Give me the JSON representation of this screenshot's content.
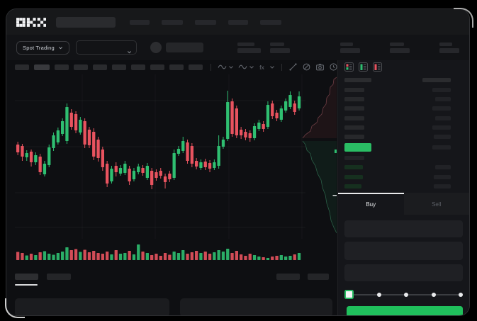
{
  "app": {
    "logo_label": "OKX"
  },
  "topbar": {
    "nav_placeholders": [
      28,
      30,
      30,
      28,
      30
    ]
  },
  "subbar": {
    "market_selector_label": "Spot Trading",
    "stats": [
      [
        24,
        33
      ],
      [
        20,
        28
      ],
      [
        18,
        28
      ],
      [
        20,
        28
      ],
      [
        18,
        28
      ]
    ]
  },
  "chart_toolbar": {
    "blocks": [
      20,
      22,
      20,
      20,
      20,
      20,
      20,
      20,
      20,
      20
    ],
    "tools": [
      "divider",
      "wave",
      "chevron",
      "wave",
      "chevron",
      "fx",
      "chevron",
      "divider",
      "line",
      "eraser",
      "camera",
      "clock",
      "expand"
    ]
  },
  "orderbook": {
    "layout_icons": [
      "both",
      "bids",
      "asks"
    ],
    "header": [
      38,
      40
    ],
    "asks": [
      [
        28,
        26
      ],
      [
        28,
        22
      ],
      [
        28,
        26
      ],
      [
        28,
        22
      ],
      [
        28,
        26
      ],
      [
        28,
        24
      ]
    ],
    "last_price_width": 38,
    "last_price_amount_width": 26,
    "bids": [
      [
        28,
        0
      ],
      [
        26,
        22
      ],
      [
        26,
        24
      ],
      [
        24,
        24
      ]
    ]
  },
  "trade": {
    "tabs": [
      {
        "label": "Buy",
        "active": true
      },
      {
        "label": "Sell",
        "active": false
      }
    ],
    "input_heights": [
      24,
      26,
      24
    ],
    "slider": {
      "dot_count": 5,
      "selected_index": 0
    }
  },
  "bottom": {
    "tab_widths": [
      33,
      34
    ],
    "right_block_widths": [
      33,
      30
    ],
    "table_cell_widths": [
      218,
      215
    ]
  },
  "colors": {
    "up": "#2fbf71",
    "down": "#e8535f",
    "buy_green": "#20c05c",
    "last_price_bg": "#2abd64",
    "depth_ask_line": "#7c454c",
    "depth_bid_line": "#2f6b4f"
  },
  "chart_data": [
    {
      "type": "candlestick",
      "title": "",
      "xlabel": "",
      "ylabel": "",
      "ylim": [
        70,
        225
      ],
      "units": "relative-price",
      "ohlc": [
        [
          137,
          141,
          122,
          126
        ],
        [
          135,
          138,
          114,
          120
        ],
        [
          119,
          129,
          114,
          125
        ],
        [
          127,
          130,
          106,
          112
        ],
        [
          112,
          126,
          108,
          122
        ],
        [
          120,
          124,
          94,
          98
        ],
        [
          95,
          114,
          92,
          110
        ],
        [
          108,
          137,
          105,
          133
        ],
        [
          132,
          154,
          128,
          150
        ],
        [
          140,
          161,
          137,
          157
        ],
        [
          152,
          174,
          149,
          170
        ],
        [
          142,
          195,
          138,
          190
        ],
        [
          182,
          187,
          158,
          162
        ],
        [
          180,
          184,
          153,
          157
        ],
        [
          154,
          176,
          151,
          172
        ],
        [
          170,
          174,
          132,
          137
        ],
        [
          158,
          162,
          132,
          136
        ],
        [
          155,
          160,
          115,
          120
        ],
        [
          144,
          148,
          113,
          118
        ],
        [
          130,
          134,
          100,
          105
        ],
        [
          110,
          114,
          77,
          82
        ],
        [
          85,
          107,
          82,
          103
        ],
        [
          107,
          112,
          92,
          98
        ],
        [
          96,
          108,
          93,
          104
        ],
        [
          97,
          114,
          94,
          110
        ],
        [
          103,
          107,
          80,
          85
        ],
        [
          88,
          104,
          85,
          100
        ],
        [
          98,
          110,
          95,
          106
        ],
        [
          104,
          108,
          93,
          97
        ],
        [
          90,
          111,
          87,
          107
        ],
        [
          100,
          104,
          74,
          80
        ],
        [
          98,
          102,
          86,
          90
        ],
        [
          100,
          104,
          89,
          93
        ],
        [
          92,
          96,
          75,
          84
        ],
        [
          96,
          100,
          84,
          88
        ],
        [
          90,
          130,
          87,
          125
        ],
        [
          124,
          135,
          121,
          131
        ],
        [
          128,
          148,
          125,
          142
        ],
        [
          140,
          144,
          110,
          114
        ],
        [
          135,
          139,
          105,
          110
        ],
        [
          114,
          118,
          102,
          106
        ],
        [
          104,
          116,
          101,
          112
        ],
        [
          113,
          117,
          101,
          105
        ],
        [
          111,
          115,
          98,
          103
        ],
        [
          104,
          116,
          101,
          112
        ],
        [
          107,
          150,
          103,
          135
        ],
        [
          134,
          148,
          131,
          144
        ],
        [
          145,
          213,
          142,
          197
        ],
        [
          198,
          202,
          148,
          152
        ],
        [
          188,
          192,
          146,
          150
        ],
        [
          158,
          162,
          145,
          150
        ],
        [
          155,
          159,
          143,
          147
        ],
        [
          153,
          157,
          141,
          146
        ],
        [
          146,
          167,
          143,
          163
        ],
        [
          159,
          172,
          156,
          168
        ],
        [
          166,
          170,
          155,
          159
        ],
        [
          162,
          198,
          159,
          193
        ],
        [
          195,
          199,
          173,
          177
        ],
        [
          182,
          186,
          170,
          174
        ],
        [
          172,
          192,
          169,
          188
        ],
        [
          185,
          202,
          182,
          198
        ],
        [
          190,
          212,
          187,
          207
        ],
        [
          195,
          199,
          179,
          183
        ],
        [
          188,
          212,
          185,
          205
        ]
      ]
    },
    {
      "type": "bar",
      "name": "volume",
      "units": "relative-volume",
      "values": [
        46,
        40,
        26,
        36,
        28,
        44,
        50,
        36,
        30,
        40,
        48,
        72,
        56,
        62,
        46,
        58,
        44,
        52,
        40,
        36,
        48,
        32,
        56,
        36,
        40,
        52,
        32,
        88,
        48,
        40,
        28,
        36,
        24,
        40,
        30,
        48,
        40,
        56,
        36,
        44,
        52,
        40,
        48,
        36,
        44,
        56,
        48,
        64,
        40,
        52,
        32,
        24,
        36,
        28,
        20,
        16,
        12,
        20,
        24,
        28,
        20,
        24,
        32,
        40
      ]
    },
    {
      "type": "area",
      "name": "depth",
      "orientation": "vertical",
      "asks_points": [
        [
          50,
          2
        ],
        [
          46,
          5
        ],
        [
          45,
          12
        ],
        [
          41,
          16
        ],
        [
          40,
          26
        ],
        [
          36,
          31
        ],
        [
          35,
          40
        ],
        [
          31,
          45
        ],
        [
          29,
          54
        ],
        [
          24,
          59
        ],
        [
          22,
          66
        ],
        [
          15,
          71
        ],
        [
          13,
          78
        ],
        [
          6,
          83
        ],
        [
          2,
          88
        ]
      ],
      "bids_points": [
        [
          2,
          92
        ],
        [
          6,
          97
        ],
        [
          8,
          105
        ],
        [
          13,
          110
        ],
        [
          15,
          119
        ],
        [
          20,
          127
        ],
        [
          23,
          138
        ],
        [
          28,
          147
        ],
        [
          30,
          158
        ],
        [
          34,
          168
        ],
        [
          36,
          180
        ],
        [
          40,
          192
        ],
        [
          42,
          204
        ],
        [
          46,
          214
        ],
        [
          50,
          222
        ]
      ]
    }
  ]
}
